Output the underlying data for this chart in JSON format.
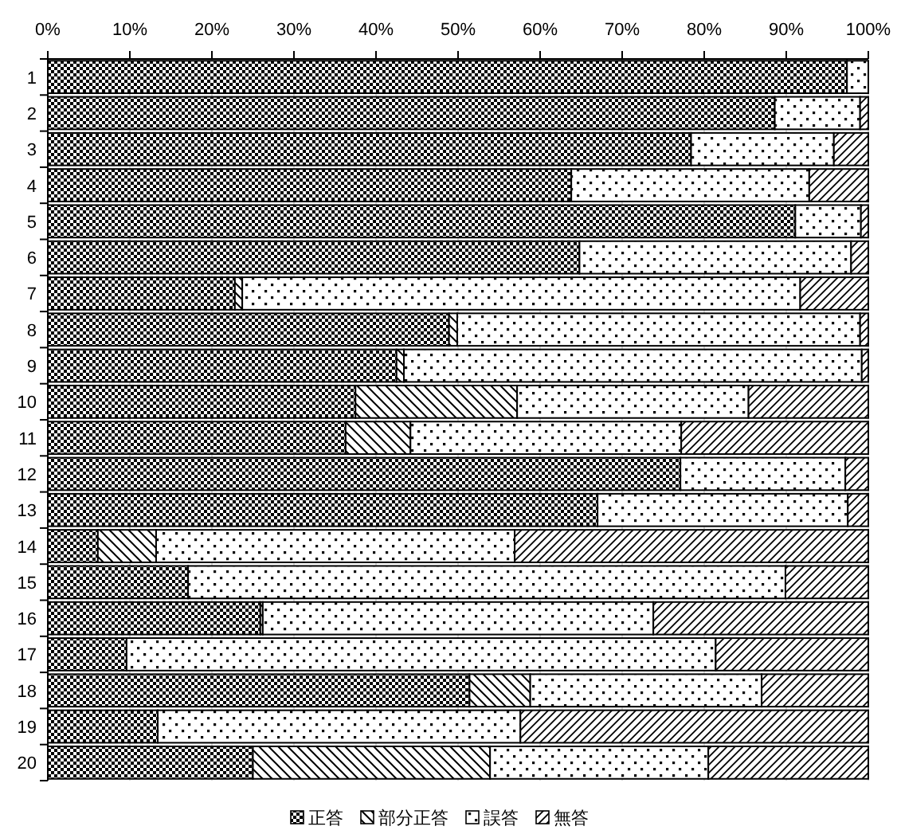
{
  "chart_data": {
    "type": "bar",
    "orientation": "horizontal",
    "stacked": true,
    "categories": [
      "1",
      "2",
      "3",
      "4",
      "5",
      "6",
      "7",
      "8",
      "9",
      "10",
      "11",
      "12",
      "13",
      "14",
      "15",
      "16",
      "17",
      "18",
      "19",
      "20"
    ],
    "series": [
      {
        "name": "正答",
        "color": "#000000",
        "values": [
          97.4,
          88.6,
          78.4,
          63.8,
          91.1,
          64.8,
          22.8,
          48.9,
          42.5,
          37.5,
          36.3,
          77.1,
          67.0,
          6.1,
          17.1,
          25.9,
          9.6,
          51.4,
          13.4,
          25.0
        ]
      },
      {
        "name": "部分正答",
        "color": "#000000",
        "values": [
          0,
          0,
          0,
          0,
          0,
          0,
          0.9,
          1.0,
          0.9,
          19.7,
          7.9,
          0,
          0,
          7.1,
          0,
          0.3,
          0,
          7.4,
          0,
          28.9
        ]
      },
      {
        "name": "誤答",
        "color": "#000000",
        "values": [
          2.6,
          10.4,
          17.4,
          29.0,
          8.0,
          33.1,
          68.0,
          49.1,
          55.8,
          28.2,
          33.0,
          20.1,
          30.5,
          43.7,
          72.8,
          47.6,
          71.8,
          28.2,
          44.2,
          26.6
        ]
      },
      {
        "name": "無答",
        "color": "#000000",
        "values": [
          0,
          1.0,
          4.2,
          7.2,
          0.9,
          2.1,
          8.3,
          1.0,
          0.8,
          14.6,
          22.8,
          2.8,
          2.5,
          43.1,
          10.1,
          26.2,
          18.6,
          13.0,
          42.4,
          19.5
        ]
      }
    ],
    "xlim": [
      0,
      100
    ],
    "xticks": [
      {
        "value": 0,
        "label": "0%"
      },
      {
        "value": 10,
        "label": "10%"
      },
      {
        "value": 20,
        "label": "20%"
      },
      {
        "value": 30,
        "label": "30%"
      },
      {
        "value": 40,
        "label": "40%"
      },
      {
        "value": 50,
        "label": "50%"
      },
      {
        "value": 60,
        "label": "60%"
      },
      {
        "value": 70,
        "label": "70%"
      },
      {
        "value": 80,
        "label": "80%"
      },
      {
        "value": 90,
        "label": "90%"
      },
      {
        "value": 100,
        "label": "100%"
      }
    ],
    "grid": "x",
    "legend": "bottom"
  }
}
